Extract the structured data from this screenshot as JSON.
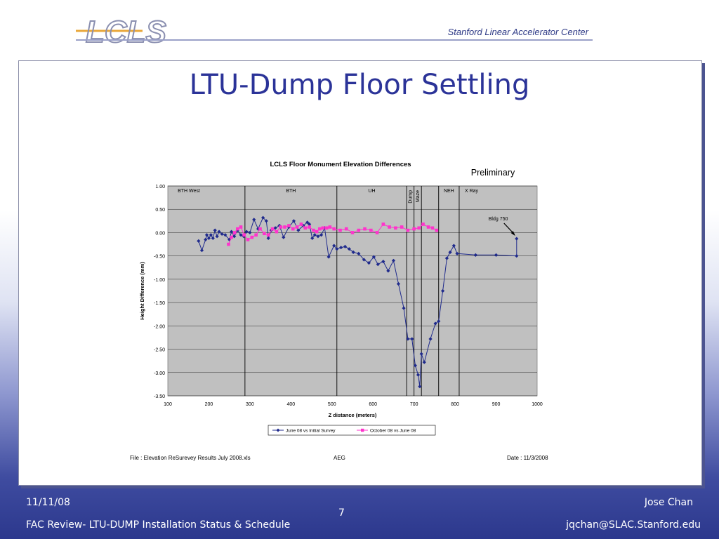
{
  "header": {
    "logo_text": "LCLS",
    "organization": "Stanford Linear Accelerator Center"
  },
  "slide": {
    "title": "LTU-Dump Floor Settling"
  },
  "chart_data": {
    "type": "line",
    "title": "LCLS Floor Monument Elevation Differences",
    "annotation_status": "Preliminary",
    "xlabel": "Z distance (meters)",
    "ylabel": "Height Difference (mm)",
    "xlim": [
      100,
      1000
    ],
    "ylim": [
      -3.5,
      1.0
    ],
    "x_ticks": [
      "100",
      "200",
      "300",
      "400",
      "500",
      "600",
      "700",
      "800",
      "900",
      "1000"
    ],
    "y_ticks": [
      "1.00",
      "0.50",
      "0.00",
      "-0.50",
      "-1.00",
      "-1.50",
      "-2.00",
      "-2.50",
      "-3.00",
      "-3.50"
    ],
    "grid": true,
    "legend_position": "bottom",
    "regions": [
      {
        "label": "BTH West",
        "start": 100,
        "end": 288,
        "vertical": false
      },
      {
        "label": "BTH",
        "start": 288,
        "end": 512,
        "vertical": false
      },
      {
        "label": "UH",
        "start": 512,
        "end": 682,
        "vertical": false
      },
      {
        "label": "Dump",
        "start": 682,
        "end": 700,
        "vertical": true
      },
      {
        "label": "Maze",
        "start": 700,
        "end": 718,
        "vertical": true
      },
      {
        "label": "NEH",
        "start": 760,
        "end": 800,
        "vertical": false
      },
      {
        "label": "X Ray",
        "start": 800,
        "end": 870,
        "vertical": false
      }
    ],
    "boundaries": [
      288,
      512,
      682,
      700,
      718,
      760,
      810
    ],
    "arrow_annotation": {
      "text": "Bldg 750",
      "x": 950,
      "y": -0.13
    },
    "series": [
      {
        "name": "June 08 vs Initial Survey",
        "color": "#1f2a8c",
        "marker": "diamond",
        "x": [
          175,
          183,
          192,
          195,
          200,
          205,
          210,
          215,
          220,
          225,
          232,
          240,
          250,
          255,
          262,
          270,
          278,
          285,
          292,
          300,
          310,
          320,
          332,
          340,
          345,
          352,
          362,
          372,
          382,
          395,
          407,
          418,
          430,
          440,
          445,
          452,
          458,
          466,
          474,
          482,
          492,
          505,
          512,
          522,
          532,
          542,
          552,
          565,
          578,
          590,
          602,
          612,
          625,
          637,
          650,
          662,
          675,
          685,
          695,
          703,
          710,
          714,
          718,
          725,
          740,
          752,
          760,
          770,
          780,
          788,
          797,
          805,
          850,
          900,
          950,
          950
        ],
        "y": [
          -0.18,
          -0.38,
          -0.15,
          -0.05,
          -0.12,
          -0.05,
          -0.12,
          0.05,
          -0.08,
          0.02,
          -0.03,
          -0.05,
          -0.15,
          0.02,
          -0.08,
          0.05,
          -0.05,
          -0.08,
          0.02,
          0.0,
          0.28,
          0.08,
          0.32,
          0.25,
          -0.12,
          0.05,
          0.1,
          0.15,
          -0.1,
          0.12,
          0.25,
          0.05,
          0.15,
          0.22,
          0.18,
          -0.12,
          -0.05,
          -0.08,
          -0.05,
          0.1,
          -0.52,
          -0.28,
          -0.35,
          -0.32,
          -0.3,
          -0.35,
          -0.42,
          -0.45,
          -0.58,
          -0.65,
          -0.52,
          -0.68,
          -0.62,
          -0.82,
          -0.6,
          -1.1,
          -1.62,
          -2.28,
          -2.28,
          -2.85,
          -3.05,
          -3.3,
          -2.6,
          -2.78,
          -2.28,
          -1.95,
          -1.9,
          -1.25,
          -0.55,
          -0.42,
          -0.28,
          -0.45,
          -0.48,
          -0.48,
          -0.5,
          -0.13
        ]
      },
      {
        "name": "October 08 vs June 08",
        "color": "#ff33cc",
        "marker": "square",
        "x": [
          248,
          255,
          263,
          270,
          278,
          286,
          295,
          305,
          315,
          325,
          335,
          345,
          355,
          365,
          375,
          385,
          395,
          405,
          415,
          425,
          435,
          445,
          455,
          463,
          470,
          478,
          487,
          495,
          505,
          520,
          535,
          550,
          565,
          580,
          595,
          610,
          625,
          640,
          655,
          670,
          685,
          700,
          712,
          722,
          735,
          745,
          755
        ],
        "y": [
          -0.25,
          -0.1,
          0.0,
          0.08,
          0.12,
          -0.05,
          -0.15,
          -0.1,
          -0.05,
          0.08,
          -0.02,
          -0.05,
          0.08,
          0.02,
          0.12,
          0.12,
          0.15,
          0.08,
          0.12,
          0.18,
          0.1,
          0.12,
          0.05,
          0.02,
          0.08,
          0.1,
          0.1,
          0.12,
          0.08,
          0.05,
          0.08,
          0.0,
          0.05,
          0.08,
          0.05,
          0.0,
          0.18,
          0.12,
          0.1,
          0.12,
          0.05,
          0.08,
          0.1,
          0.18,
          0.12,
          0.1,
          0.05
        ]
      }
    ],
    "footnotes": {
      "file": "File : Elevation ReSurevey Results July 2008.xls",
      "author": "AEG",
      "date": "Date : 11/3/2008"
    }
  },
  "footer": {
    "date": "11/11/08",
    "subtitle": "FAC Review- LTU-DUMP Installation Status & Schedule",
    "page_number": "7",
    "presenter": "Jose Chan",
    "email": "jqchan@SLAC.Stanford.edu"
  }
}
